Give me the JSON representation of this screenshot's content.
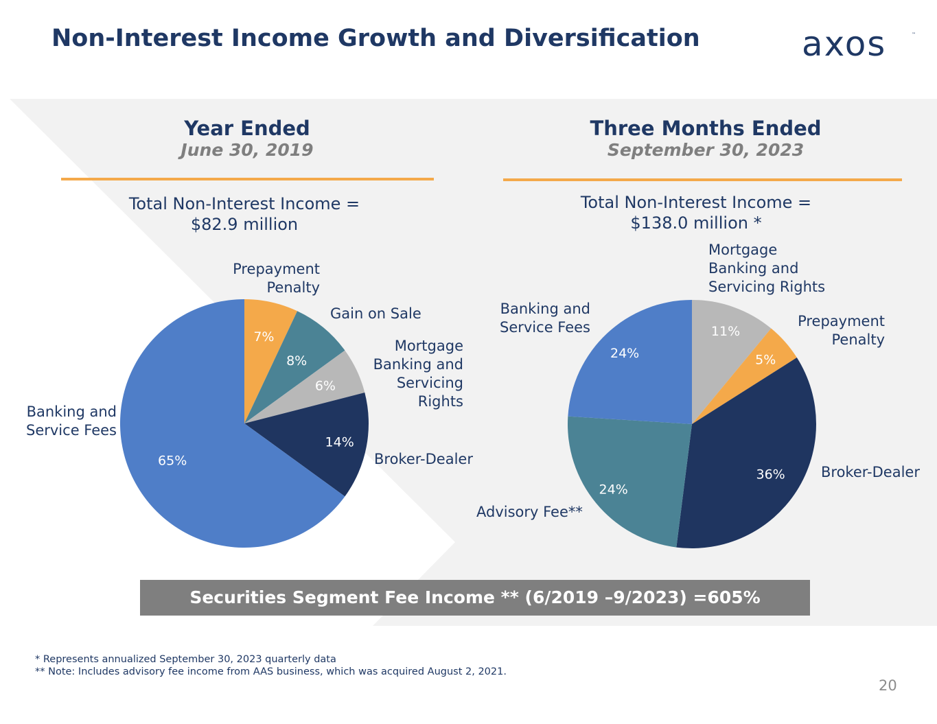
{
  "title": "Non-Interest Income Growth and Diversification",
  "logo": {
    "text": "axos"
  },
  "colors": {
    "navy": "#1f3864",
    "orange": "#f4a94a",
    "gray_text": "#7f7f7f",
    "panel_bg": "#f2f2f2"
  },
  "left_panel": {
    "heading": "Year Ended",
    "subheading": "June 30, 2019",
    "total_line1": "Total Non-Interest Income =",
    "total_line2": "$82.9 million",
    "labels": {
      "prepayment": [
        "Prepayment",
        "Penalty"
      ],
      "gain": "Gain on Sale",
      "mortgage": [
        "Mortgage",
        "Banking and",
        "Servicing",
        "Rights"
      ],
      "broker": "Broker-Dealer",
      "banking": [
        "Banking and",
        "Service Fees"
      ]
    }
  },
  "right_panel": {
    "heading": "Three Months Ended",
    "subheading": "September 30, 2023",
    "total_line1": "Total Non-Interest Income =",
    "total_line2": "$138.0 million *",
    "labels": {
      "mortgage": [
        "Mortgage",
        "Banking and",
        "Servicing Rights"
      ],
      "prepayment": [
        "Prepayment",
        "Penalty"
      ],
      "banking": [
        "Banking and",
        "Service Fees"
      ],
      "broker": "Broker-Dealer",
      "advisory": "Advisory Fee**"
    }
  },
  "chart_data": [
    {
      "type": "pie",
      "title": "Year Ended June 30, 2019",
      "slices": [
        {
          "name": "Prepayment Penalty",
          "value": 7,
          "label": "7%",
          "color": "#f4a94a",
          "label_color": "#ffffff"
        },
        {
          "name": "Gain on Sale",
          "value": 8,
          "label": "8%",
          "color": "#4b8395",
          "label_color": "#ffffff"
        },
        {
          "name": "Mortgage Banking and Servicing Rights",
          "value": 6,
          "label": "6%",
          "color": "#b8b8b8",
          "label_color": "#ffffff"
        },
        {
          "name": "Broker-Dealer",
          "value": 14,
          "label": "14%",
          "color": "#1f3560",
          "label_color": "#ffffff"
        },
        {
          "name": "Banking and Service Fees",
          "value": 65,
          "label": "65%",
          "color": "#4f7ec8",
          "label_color": "#ffffff"
        }
      ]
    },
    {
      "type": "pie",
      "title": "Three Months Ended September 30, 2023",
      "slices": [
        {
          "name": "Mortgage Banking and Servicing Rights",
          "value": 11,
          "label": "11%",
          "color": "#b8b8b8",
          "label_color": "#ffffff"
        },
        {
          "name": "Prepayment Penalty",
          "value": 5,
          "label": "5%",
          "color": "#f4a94a",
          "label_color": "#ffffff"
        },
        {
          "name": "Broker-Dealer",
          "value": 36,
          "label": "36%",
          "color": "#1f3560",
          "label_color": "#ffffff"
        },
        {
          "name": "Advisory Fee**",
          "value": 24,
          "label": "24%",
          "color": "#4b8395",
          "label_color": "#ffffff"
        },
        {
          "name": "Banking and Service Fees",
          "value": 24,
          "label": "24%",
          "color": "#4f7ec8",
          "label_color": "#ffffff"
        }
      ]
    }
  ],
  "banner": "Securities Segment Fee Income ** (6/2019 –9/2023) =605%",
  "footnotes": [
    "*   Represents annualized September 30, 2023 quarterly data",
    "** Note: Includes advisory fee income from AAS business, which was acquired August 2, 2021."
  ],
  "page_number": "20"
}
